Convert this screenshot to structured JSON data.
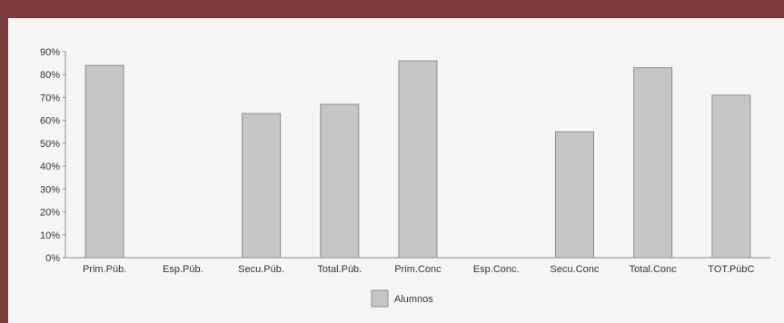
{
  "chart_data": {
    "type": "bar",
    "categories": [
      "Prim.Púb.",
      "Esp.Púb.",
      "Secu.Púb.",
      "Total.Púb.",
      "Prim.Conc",
      "Esp.Conc.",
      "Secu.Conc",
      "Total.Conc",
      "TOT.PúbC"
    ],
    "series": [
      {
        "name": "Alumnos",
        "values": [
          84,
          0,
          63,
          67,
          86,
          0,
          55,
          83,
          71
        ]
      }
    ],
    "ylim": [
      0,
      90
    ],
    "yticks": [
      "0%",
      "10%",
      "20%",
      "30%",
      "40%",
      "50%",
      "60%",
      "70%",
      "80%",
      "90%"
    ],
    "grid": false,
    "legend": "bottom",
    "colors": {
      "bar_fill": "#c6c6c6",
      "bar_stroke": "#8d8d8d",
      "frame": "#7d3a3a",
      "panel": "#f6f6f6"
    }
  }
}
